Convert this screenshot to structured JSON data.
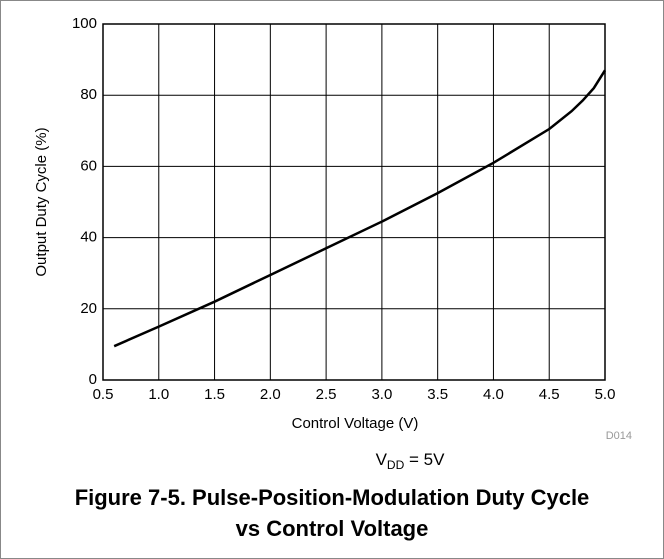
{
  "chart_data": {
    "type": "line",
    "x": [
      0.6,
      1.0,
      1.5,
      2.0,
      2.5,
      3.0,
      3.5,
      4.0,
      4.5,
      4.7,
      4.8,
      4.9,
      5.0
    ],
    "values": [
      9.5,
      15,
      22,
      29.5,
      37,
      44.5,
      52.5,
      61,
      70.5,
      75.5,
      78.5,
      82,
      87
    ],
    "color": "#000000",
    "xlim": [
      0.5,
      5.0
    ],
    "xticks": [
      0.5,
      {
        "value": 1,
        "label": "1.0"
      },
      1.5,
      {
        "value": 2,
        "label": "2.0"
      },
      2.5,
      {
        "value": 3,
        "label": "3.0"
      },
      3.5,
      {
        "value": 4,
        "label": "4.0"
      },
      4.5,
      {
        "value": 5,
        "label": "5.0"
      }
    ],
    "ylim": [
      0,
      100
    ],
    "yticks": [
      0,
      20,
      40,
      60,
      80,
      100
    ],
    "grid": true,
    "xlabel": "Control Voltage (V)",
    "ylabel": "Output Duty Cycle (%)",
    "annotation": "D014",
    "condition": {
      "main": "V",
      "sub": "DD",
      "rest": " = 5V"
    },
    "title": [
      "Figure 7-5. Pulse-Position-Modulation Duty Cycle",
      "vs Control Voltage"
    ]
  }
}
